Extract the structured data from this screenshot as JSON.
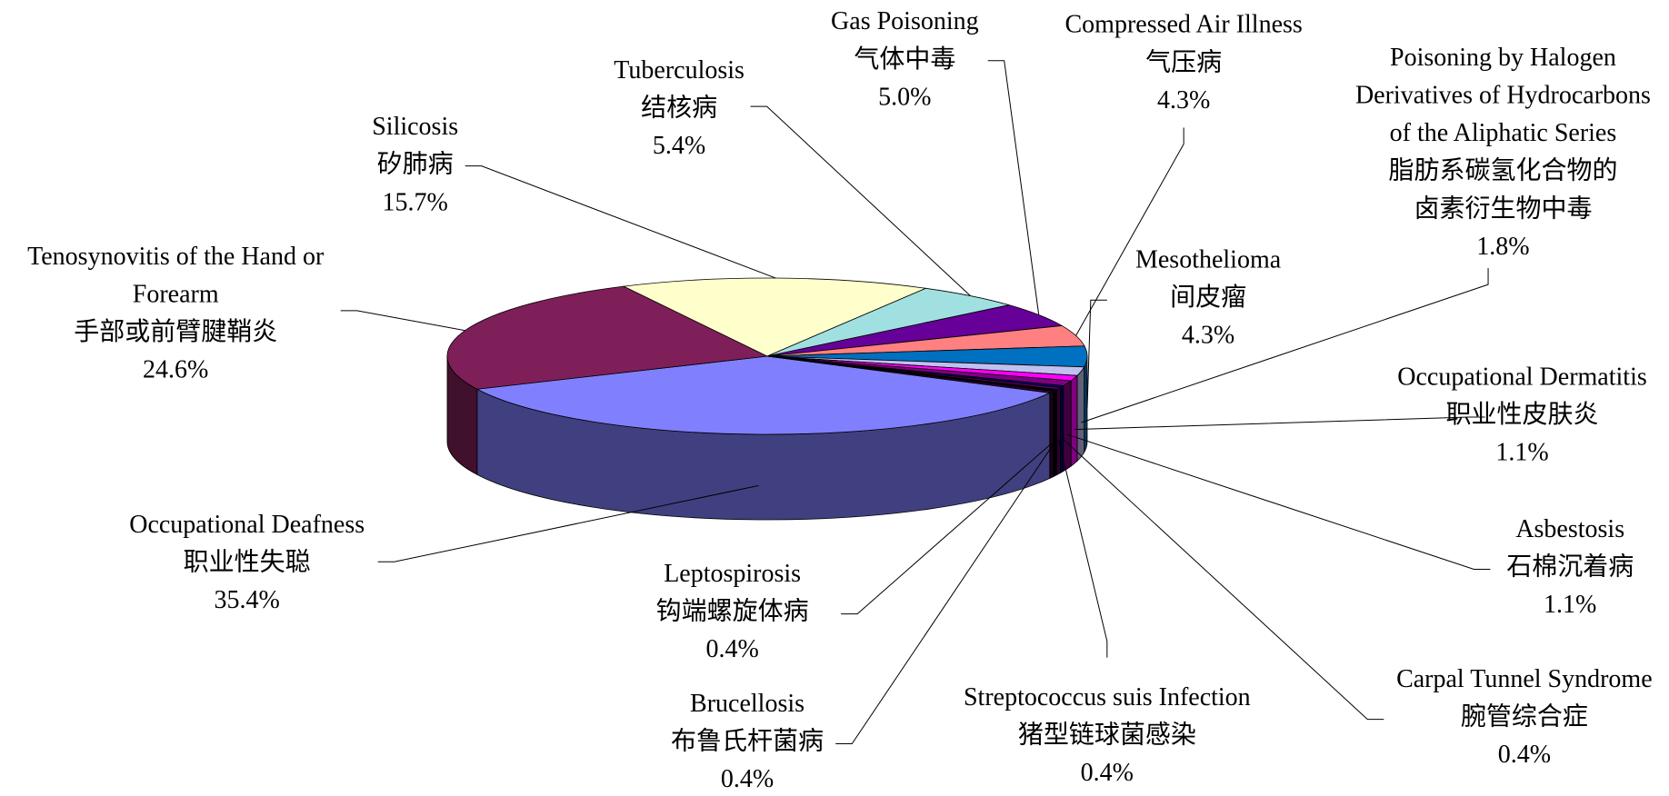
{
  "chart_data": {
    "type": "pie3d",
    "categories": [
      [
        "Occupational Deafness",
        "职业性失聪"
      ],
      [
        "Tenosynovitis of the Hand or",
        "Forearm",
        "手部或前臂腱鞘炎"
      ],
      [
        "Silicosis",
        "矽肺病"
      ],
      [
        "Tuberculosis",
        "结核病"
      ],
      [
        "Gas Poisoning",
        "气体中毒"
      ],
      [
        "Compressed Air Illness",
        "气压病"
      ],
      [
        "Mesothelioma",
        "间皮瘤"
      ],
      [
        "Poisoning by Halogen",
        "Derivatives of Hydrocarbons",
        "of the Aliphatic Series",
        "脂肪系碳氢化合物的",
        "卤素衍生物中毒"
      ],
      [
        "Occupational Dermatitis",
        "职业性皮肤炎"
      ],
      [
        "Asbestosis",
        "石棉沉着病"
      ],
      [
        "Carpal Tunnel Syndrome",
        "腕管综合症"
      ],
      [
        "Streptococcus suis Infection",
        "猪型链球菌感染"
      ],
      [
        "Brucellosis",
        "布鲁氏杆菌病"
      ],
      [
        "Leptospirosis",
        "钩端螺旋体病"
      ]
    ],
    "values": [
      35.4,
      24.6,
      15.7,
      5.4,
      5.0,
      4.3,
      4.3,
      1.8,
      1.1,
      1.1,
      0.4,
      0.4,
      0.4,
      0.4
    ],
    "value_labels": [
      "35.4%",
      "24.6%",
      "15.7%",
      "5.4%",
      "5.0%",
      "4.3%",
      "4.3%",
      "1.8%",
      "1.1%",
      "1.1%",
      "0.4%",
      "0.4%",
      "0.4%",
      "0.4%"
    ],
    "colors": [
      "#8080ff",
      "#7f1f5a",
      "#ffffcc",
      "#a0e0e0",
      "#660099",
      "#ff8080",
      "#0070c0",
      "#c0c0f0",
      "#ff00ff",
      "#800080",
      "#000080",
      "#660066",
      "#000000",
      "#330033"
    ]
  }
}
